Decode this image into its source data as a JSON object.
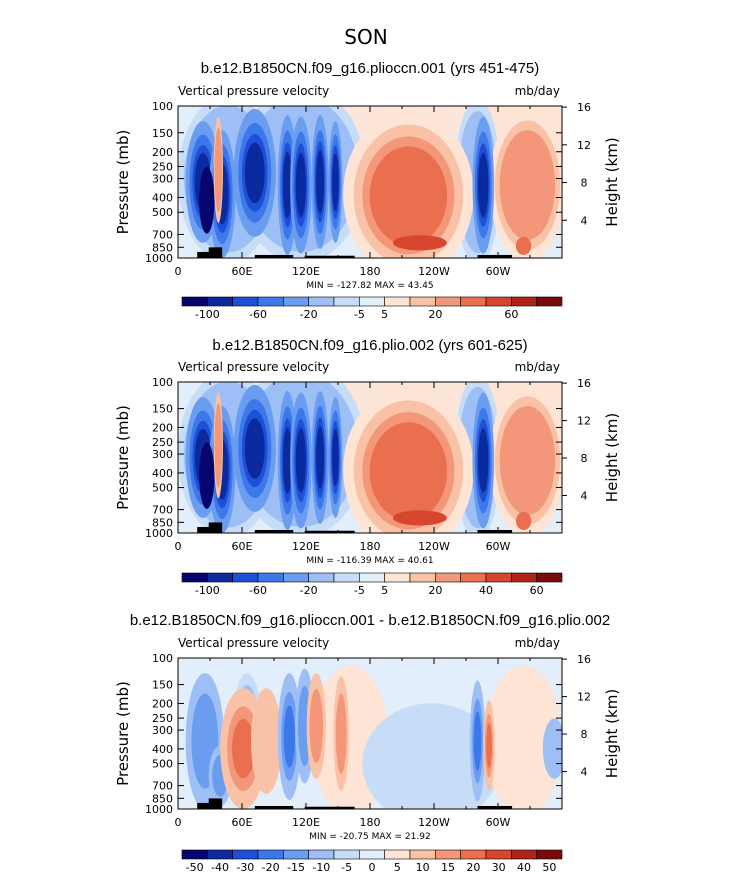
{
  "figure_title": "SON",
  "chart_data": [
    {
      "type": "heatmap",
      "title": "b.e12.B1850CN.f09_g16.plioccn.001 (yrs 451-475)",
      "left_label": "Vertical pressure velocity",
      "right_label": "mb/day",
      "ylabel": "Pressure (mb)",
      "ylabel_right": "Height (km)",
      "x_ticks": [
        "0",
        "60E",
        "120E",
        "180",
        "120W",
        "60W"
      ],
      "y_ticks": [
        "100",
        "150",
        "200",
        "250",
        "300",
        "400",
        "500",
        "700",
        "850",
        "1000"
      ],
      "height_ticks": [
        "16",
        "12",
        "8",
        "4"
      ],
      "minmax": "MIN = -127.82   MAX =  43.45",
      "colorbar_labels": [
        "-100",
        "-60",
        "-20",
        "-5",
        "5",
        "20",
        "60"
      ],
      "colorbar_colors": [
        "#06066e",
        "#0a2a9e",
        "#1f4fd6",
        "#3d78ea",
        "#6a9cf0",
        "#9dbff5",
        "#c7dcf7",
        "#e3eefb",
        "#fde4d5",
        "#f9c2a6",
        "#f3967a",
        "#ea6f4e",
        "#d6452d",
        "#b0231a",
        "#7a0a0a"
      ],
      "value_range": [
        -127.82,
        43.45
      ],
      "field": {
        "rising_longitudes": [
          "~15-45E",
          "~70-95E",
          "~110-150E",
          "~60-75W"
        ],
        "sinking_longitudes": [
          "~160E-110W",
          "~40-20W"
        ]
      }
    },
    {
      "type": "heatmap",
      "title": "b.e12.B1850CN.f09_g16.plio.002 (yrs 601-625)",
      "left_label": "Vertical pressure velocity",
      "right_label": "mb/day",
      "ylabel": "Pressure (mb)",
      "ylabel_right": "Height (km)",
      "x_ticks": [
        "0",
        "60E",
        "120E",
        "180",
        "120W",
        "60W"
      ],
      "y_ticks": [
        "100",
        "150",
        "200",
        "250",
        "300",
        "400",
        "500",
        "700",
        "850",
        "1000"
      ],
      "height_ticks": [
        "16",
        "12",
        "8",
        "4"
      ],
      "minmax": "MIN = -116.39   MAX =  40.61",
      "colorbar_labels": [
        "-100",
        "-60",
        "-20",
        "-5",
        "5",
        "20",
        "40",
        "60"
      ],
      "colorbar_colors": [
        "#06066e",
        "#0a2a9e",
        "#1f4fd6",
        "#3d78ea",
        "#6a9cf0",
        "#9dbff5",
        "#c7dcf7",
        "#e3eefb",
        "#fde4d5",
        "#f9c2a6",
        "#f3967a",
        "#ea6f4e",
        "#d6452d",
        "#b0231a",
        "#7a0a0a"
      ],
      "value_range": [
        -116.39,
        40.61
      ],
      "field": {
        "rising_longitudes": [
          "~15-45E",
          "~70-95E",
          "~110-150E",
          "~60-75W"
        ],
        "sinking_longitudes": [
          "~160E-110W",
          "~40-20W"
        ]
      }
    },
    {
      "type": "heatmap",
      "title": "b.e12.B1850CN.f09_g16.plioccn.001 - b.e12.B1850CN.f09_g16.plio.002",
      "left_label": "Vertical pressure velocity",
      "right_label": "mb/day",
      "ylabel": "Pressure (mb)",
      "ylabel_right": "Height (km)",
      "x_ticks": [
        "0",
        "60E",
        "120E",
        "180",
        "120W",
        "60W"
      ],
      "y_ticks": [
        "100",
        "150",
        "200",
        "250",
        "300",
        "400",
        "500",
        "700",
        "850",
        "1000"
      ],
      "height_ticks": [
        "16",
        "12",
        "8",
        "4"
      ],
      "minmax": "MIN = -20.75   MAX =  21.92",
      "colorbar_labels": [
        "-50",
        "-40",
        "-30",
        "-20",
        "-15",
        "-10",
        "-5",
        "0",
        "5",
        "10",
        "15",
        "20",
        "30",
        "40",
        "50"
      ],
      "colorbar_colors": [
        "#06066e",
        "#0a2a9e",
        "#1f4fd6",
        "#3d78ea",
        "#6a9cf0",
        "#9dbff5",
        "#c7dcf7",
        "#e3eefb",
        "#fde4d5",
        "#f9c2a6",
        "#f3967a",
        "#ea6f4e",
        "#d6452d",
        "#b0231a",
        "#7a0a0a"
      ],
      "value_range": [
        -20.75,
        21.92
      ],
      "field": {
        "rising_longitudes": [
          "~15-35E",
          "~110-125E",
          "~60-70W"
        ],
        "sinking_longitudes": [
          "~55-75E",
          "~135-175E",
          "~65W"
        ]
      }
    }
  ]
}
